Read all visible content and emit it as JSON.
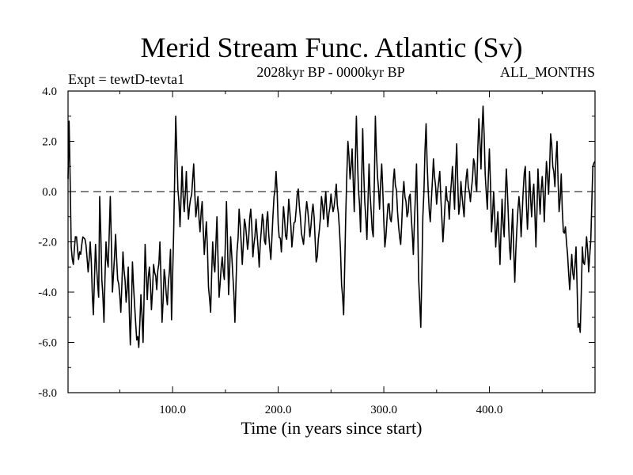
{
  "chart_data": {
    "type": "line",
    "title": "Merid Stream Func. Atlantic (Sv)",
    "expt_label": "Expt = tewtD-tevta1",
    "period_label": "2028kyr BP - 0000kyr BP",
    "months_label": "ALL_MONTHS",
    "xlabel": "Time (in years since start)",
    "ylabel": "",
    "xlim": [
      1,
      500
    ],
    "ylim": [
      -8,
      4
    ],
    "x_ticks": [
      100,
      200,
      300,
      400
    ],
    "x_tick_labels": [
      "100.0",
      "200.0",
      "300.0",
      "400.0"
    ],
    "y_ticks": [
      -8,
      -6,
      -4,
      -2,
      0,
      2,
      4
    ],
    "y_tick_labels": [
      "-8.0",
      "-6.0",
      "-4.0",
      "-2.0",
      "0.0",
      "2.0",
      "4.0"
    ],
    "reference_line": 0,
    "series": [
      {
        "name": "Merid Stream Func. Atlantic",
        "anchors": [
          [
            1,
            0.5
          ],
          [
            2,
            2.8
          ],
          [
            4,
            -2.2
          ],
          [
            6,
            -2.9
          ],
          [
            8,
            -1.8
          ],
          [
            11,
            -2.7
          ],
          [
            14,
            -2.1
          ],
          [
            17,
            -1.9
          ],
          [
            20,
            -3.2
          ],
          [
            22,
            -2.0
          ],
          [
            25,
            -4.9
          ],
          [
            27,
            -2.1
          ],
          [
            30,
            -4.2
          ],
          [
            31,
            -0.2
          ],
          [
            33,
            -3.5
          ],
          [
            35,
            -5.2
          ],
          [
            37,
            -2.0
          ],
          [
            39,
            -3.0
          ],
          [
            41,
            -0.2
          ],
          [
            43,
            -4.0
          ],
          [
            46,
            -1.7
          ],
          [
            48,
            -3.5
          ],
          [
            51,
            -4.8
          ],
          [
            53,
            -2.4
          ],
          [
            56,
            -4.4
          ],
          [
            58,
            -3.0
          ],
          [
            60,
            -6.1
          ],
          [
            62,
            -2.8
          ],
          [
            64,
            -4.5
          ],
          [
            66,
            -5.9
          ],
          [
            68,
            -6.2
          ],
          [
            70,
            -4.1
          ],
          [
            72,
            -6.0
          ],
          [
            74,
            -2.1
          ],
          [
            76,
            -4.3
          ],
          [
            78,
            -3.0
          ],
          [
            80,
            -4.7
          ],
          [
            82,
            -2.9
          ],
          [
            85,
            -3.9
          ],
          [
            88,
            -2.0
          ],
          [
            90,
            -5.2
          ],
          [
            92,
            -3.1
          ],
          [
            95,
            -4.5
          ],
          [
            98,
            -2.3
          ],
          [
            99,
            -5.1
          ],
          [
            101,
            -1.6
          ],
          [
            103,
            3.0
          ],
          [
            105,
            0.1
          ],
          [
            107,
            -1.4
          ],
          [
            109,
            1.0
          ],
          [
            111,
            -0.8
          ],
          [
            113,
            0.8
          ],
          [
            115,
            -1.1
          ],
          [
            117,
            -0.3
          ],
          [
            120,
            1.1
          ],
          [
            122,
            -1.0
          ],
          [
            124,
            -0.2
          ],
          [
            126,
            -1.6
          ],
          [
            128,
            -0.4
          ],
          [
            130,
            -2.5
          ],
          [
            132,
            -1.2
          ],
          [
            134,
            -3.8
          ],
          [
            136,
            -4.8
          ],
          [
            138,
            -2.0
          ],
          [
            140,
            -3.2
          ],
          [
            142,
            -1.0
          ],
          [
            144,
            -4.2
          ],
          [
            147,
            -2.6
          ],
          [
            149,
            -3.5
          ],
          [
            151,
            -0.4
          ],
          [
            153,
            -4.1
          ],
          [
            155,
            -1.8
          ],
          [
            157,
            -3.3
          ],
          [
            159,
            -5.2
          ],
          [
            161,
            -2.4
          ],
          [
            163,
            -0.7
          ],
          [
            166,
            -2.9
          ],
          [
            168,
            -1.1
          ],
          [
            171,
            -2.3
          ],
          [
            174,
            -0.7
          ],
          [
            176,
            -2.6
          ],
          [
            179,
            -1.1
          ],
          [
            182,
            -3.0
          ],
          [
            185,
            -0.9
          ],
          [
            188,
            -2.1
          ],
          [
            190,
            -0.8
          ],
          [
            193,
            -2.7
          ],
          [
            195,
            -1.0
          ],
          [
            198,
            0.8
          ],
          [
            200,
            -1.3
          ],
          [
            203,
            -2.4
          ],
          [
            205,
            -0.6
          ],
          [
            208,
            -1.9
          ],
          [
            210,
            -0.3
          ],
          [
            213,
            -2.2
          ],
          [
            216,
            -1.2
          ],
          [
            219,
            0.1
          ],
          [
            221,
            -1.0
          ],
          [
            224,
            -2.1
          ],
          [
            227,
            -0.4
          ],
          [
            230,
            -1.8
          ],
          [
            233,
            -0.5
          ],
          [
            236,
            -2.8
          ],
          [
            239,
            -1.5
          ],
          [
            241,
            -0.2
          ],
          [
            243,
            -1.1
          ],
          [
            245,
            0.0
          ],
          [
            247,
            -1.4
          ],
          [
            250,
            -0.1
          ],
          [
            252,
            -0.8
          ],
          [
            255,
            0.3
          ],
          [
            258,
            -1.5
          ],
          [
            260,
            -3.7
          ],
          [
            262,
            -4.9
          ],
          [
            264,
            -0.9
          ],
          [
            266,
            2.0
          ],
          [
            268,
            0.5
          ],
          [
            270,
            1.7
          ],
          [
            272,
            -0.8
          ],
          [
            274,
            3.0
          ],
          [
            276,
            0.1
          ],
          [
            278,
            -1.6
          ],
          [
            280,
            2.5
          ],
          [
            282,
            -0.4
          ],
          [
            284,
            -1.9
          ],
          [
            286,
            1.1
          ],
          [
            288,
            -0.8
          ],
          [
            290,
            -1.8
          ],
          [
            292,
            3.0
          ],
          [
            294,
            0.6
          ],
          [
            296,
            -0.7
          ],
          [
            298,
            1.1
          ],
          [
            301,
            -2.2
          ],
          [
            304,
            -0.5
          ],
          [
            307,
            -1.2
          ],
          [
            310,
            0.9
          ],
          [
            313,
            -0.8
          ],
          [
            316,
            -2.1
          ],
          [
            319,
            0.4
          ],
          [
            322,
            -1.0
          ],
          [
            325,
            -0.1
          ],
          [
            328,
            -2.5
          ],
          [
            331,
            1.1
          ],
          [
            333,
            -3.5
          ],
          [
            335,
            -5.4
          ],
          [
            337,
            -1.0
          ],
          [
            340,
            2.7
          ],
          [
            342,
            0.1
          ],
          [
            344,
            -1.2
          ],
          [
            347,
            1.3
          ],
          [
            350,
            -0.5
          ],
          [
            353,
            0.8
          ],
          [
            356,
            -2.0
          ],
          [
            359,
            0.2
          ],
          [
            362,
            -1.1
          ],
          [
            365,
            1.0
          ],
          [
            367,
            -0.7
          ],
          [
            369,
            1.9
          ],
          [
            371,
            -0.9
          ],
          [
            373,
            0.4
          ],
          [
            376,
            -1.0
          ],
          [
            379,
            0.9
          ],
          [
            382,
            -0.4
          ],
          [
            385,
            1.3
          ],
          [
            388,
            0.0
          ],
          [
            390,
            2.9
          ],
          [
            392,
            0.9
          ],
          [
            394,
            3.4
          ],
          [
            396,
            0.7
          ],
          [
            398,
            -0.7
          ],
          [
            400,
            1.7
          ],
          [
            402,
            -1.6
          ],
          [
            404,
            0.0
          ],
          [
            406,
            -2.2
          ],
          [
            408,
            -0.8
          ],
          [
            410,
            -2.9
          ],
          [
            412,
            -0.3
          ],
          [
            414,
            -1.8
          ],
          [
            416,
            0.9
          ],
          [
            418,
            -1.1
          ],
          [
            420,
            -2.7
          ],
          [
            422,
            -0.7
          ],
          [
            424,
            -3.6
          ],
          [
            426,
            -1.5
          ],
          [
            428,
            -0.2
          ],
          [
            430,
            -1.8
          ],
          [
            432,
            0.0
          ],
          [
            434,
            1.0
          ],
          [
            436,
            -1.5
          ],
          [
            438,
            0.8
          ],
          [
            440,
            -1.0
          ],
          [
            442,
            0.3
          ],
          [
            444,
            -2.2
          ],
          [
            446,
            0.9
          ],
          [
            448,
            -0.9
          ],
          [
            450,
            0.6
          ],
          [
            452,
            -1.2
          ],
          [
            454,
            1.2
          ],
          [
            456,
            -0.1
          ],
          [
            458,
            2.3
          ],
          [
            460,
            1.0
          ],
          [
            462,
            0.2
          ],
          [
            464,
            2.0
          ],
          [
            466,
            -0.8
          ],
          [
            468,
            0.7
          ],
          [
            470,
            -1.6
          ],
          [
            472,
            -1.4
          ],
          [
            474,
            -2.5
          ],
          [
            476,
            -3.9
          ],
          [
            478,
            -2.5
          ],
          [
            480,
            -3.5
          ],
          [
            482,
            -2.2
          ],
          [
            484,
            -5.4
          ],
          [
            486,
            -5.6
          ],
          [
            488,
            -2.2
          ],
          [
            490,
            -2.9
          ],
          [
            492,
            -1.8
          ],
          [
            494,
            -3.2
          ],
          [
            496,
            -1.9
          ],
          [
            498,
            1.0
          ],
          [
            500,
            1.2
          ]
        ]
      }
    ]
  }
}
